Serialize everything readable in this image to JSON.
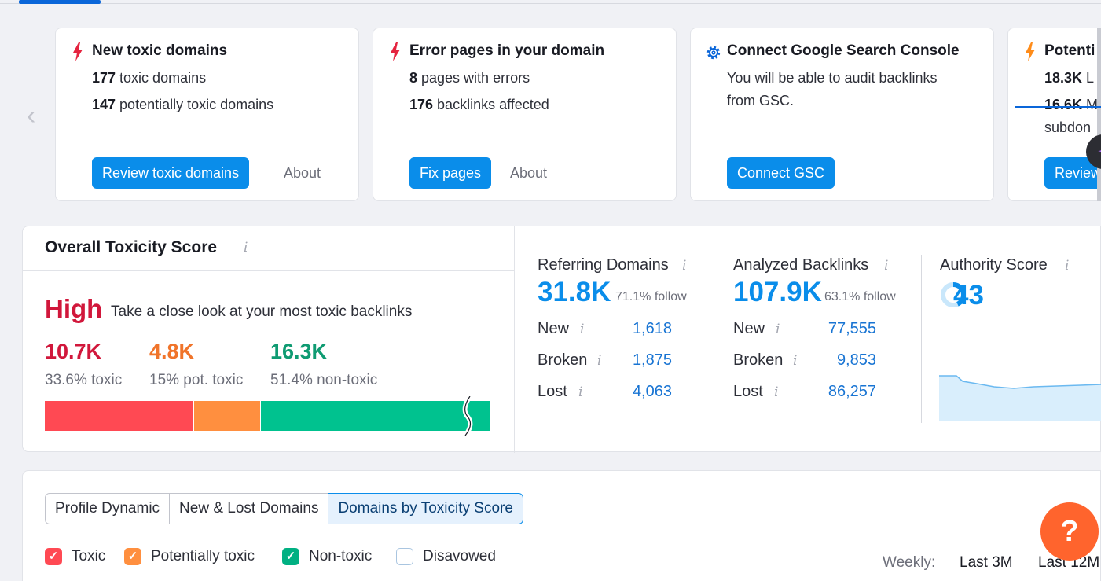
{
  "carousel": {
    "cards": [
      {
        "title": "New toxic domains",
        "line1_num": "177",
        "line1_text": " toxic domains",
        "line2_num": "147",
        "line2_text": " potentially toxic domains",
        "button": "Review toxic domains",
        "about": "About",
        "icon": "bolt-icon",
        "icon_color": "#e5233f"
      },
      {
        "title": "Error pages in your domain",
        "line1_num": "8",
        "line1_text": " pages with errors",
        "line2_num": "176",
        "line2_text": " backlinks affected",
        "button": "Fix pages",
        "about": "About",
        "icon": "bolt-icon",
        "icon_color": "#e5233f"
      },
      {
        "title": "Connect Google Search Console",
        "line1_text": "You will be able to audit backlinks",
        "line2_text": "from GSC.",
        "button": "Connect GSC",
        "icon": "gear-icon",
        "icon_color": "#0a66d9"
      },
      {
        "title": "Potenti",
        "line1_num": "18.3K",
        "line1_text": " L",
        "line2_num": "16.6K",
        "line2_text": " M",
        "line3_text": "subdon",
        "button": "Review",
        "icon": "bolt-icon",
        "icon_color": "#ff8c1a"
      }
    ]
  },
  "toxicity": {
    "title": "Overall Toxicity Score",
    "level": "High",
    "description": "Take a close look at your most toxic backlinks",
    "metrics": [
      {
        "value": "10.7K",
        "label": "33.6% toxic",
        "color": "#d1173b"
      },
      {
        "value": "4.8K",
        "label": "15% pot. toxic",
        "color": "#f0742a"
      },
      {
        "value": "16.3K",
        "label": "51.4% non-toxic",
        "color": "#0f9b72"
      }
    ],
    "bar_colors": [
      "#ff4953",
      "#ff8f3f",
      "#00c28f"
    ],
    "bar_shares": [
      0.336,
      0.15,
      0.514
    ]
  },
  "referring_domains": {
    "title": "Referring Domains",
    "value": "31.8K",
    "follow": "71.1% follow",
    "rows": [
      {
        "label": "New",
        "value": "1,618"
      },
      {
        "label": "Broken",
        "value": "1,875"
      },
      {
        "label": "Lost",
        "value": "4,063"
      }
    ]
  },
  "analyzed_backlinks": {
    "title": "Analyzed Backlinks",
    "value": "107.9K",
    "follow": "63.1% follow",
    "rows": [
      {
        "label": "New",
        "value": "77,555"
      },
      {
        "label": "Broken",
        "value": "9,853"
      },
      {
        "label": "Lost",
        "value": "86,257"
      }
    ]
  },
  "authority_score": {
    "title": "Authority Score",
    "value": "43"
  },
  "info_glyph": "i",
  "bottom": {
    "tabs": [
      "Profile Dynamic",
      "New & Lost Domains",
      "Domains by Toxicity Score"
    ],
    "selected_tab": "Domains by Toxicity Score",
    "legend": [
      {
        "label": "Toxic",
        "color": "#ff4953",
        "checked": true
      },
      {
        "label": "Potentially toxic",
        "color": "#ff8f3f",
        "checked": true
      },
      {
        "label": "Non-toxic",
        "color": "#00b082",
        "checked": true
      },
      {
        "label": "Disavowed",
        "color": "#ffffff",
        "checked": false
      }
    ],
    "weekly_label": "Weekly:",
    "ranges": [
      "Last 3M",
      "Last 12M"
    ],
    "selected_range": "Last 12M"
  },
  "help_label": "?"
}
